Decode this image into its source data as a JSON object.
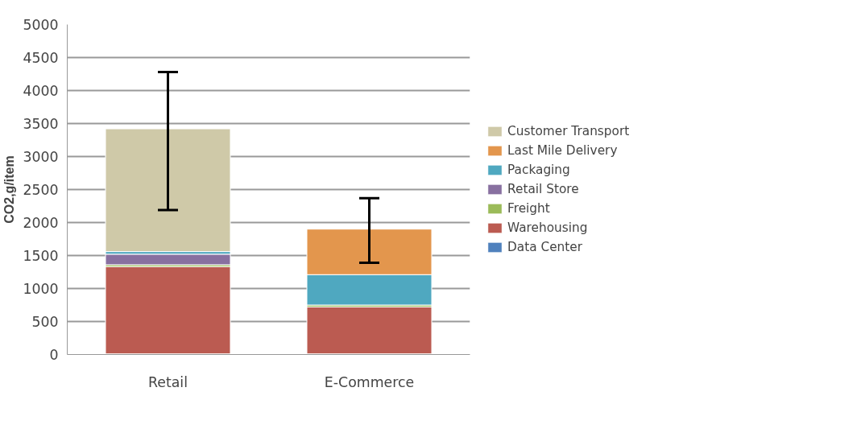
{
  "chart_data": {
    "type": "bar",
    "stacked": true,
    "ylabel": "CO2,g/item",
    "categories": [
      "Retail",
      "E-Commerce"
    ],
    "series": [
      {
        "name": "Data Center",
        "color": "#4f81bd",
        "values": [
          10,
          10
        ]
      },
      {
        "name": "Warehousing",
        "color": "#bb5b51",
        "values": [
          1320,
          710
        ]
      },
      {
        "name": "Freight",
        "color": "#9bbb59",
        "values": [
          30,
          30
        ]
      },
      {
        "name": "Retail Store",
        "color": "#8870a0",
        "values": [
          160,
          0
        ]
      },
      {
        "name": "Packaging",
        "color": "#4fa8c0",
        "values": [
          40,
          460
        ]
      },
      {
        "name": "Last Mile Delivery",
        "color": "#e3964d",
        "values": [
          0,
          690
        ]
      },
      {
        "name": "Customer Transport",
        "color": "#cfc9a8",
        "values": [
          1860,
          0
        ],
        "errors": [
          [
            2190,
            4280
          ],
          [
            1390,
            2370
          ]
        ]
      }
    ],
    "ylim": [
      0,
      5000
    ],
    "yticks": [
      0,
      500,
      1000,
      1500,
      2000,
      2500,
      3000,
      3500,
      4000,
      4500,
      5000
    ],
    "grid": "y",
    "legend": "right"
  }
}
